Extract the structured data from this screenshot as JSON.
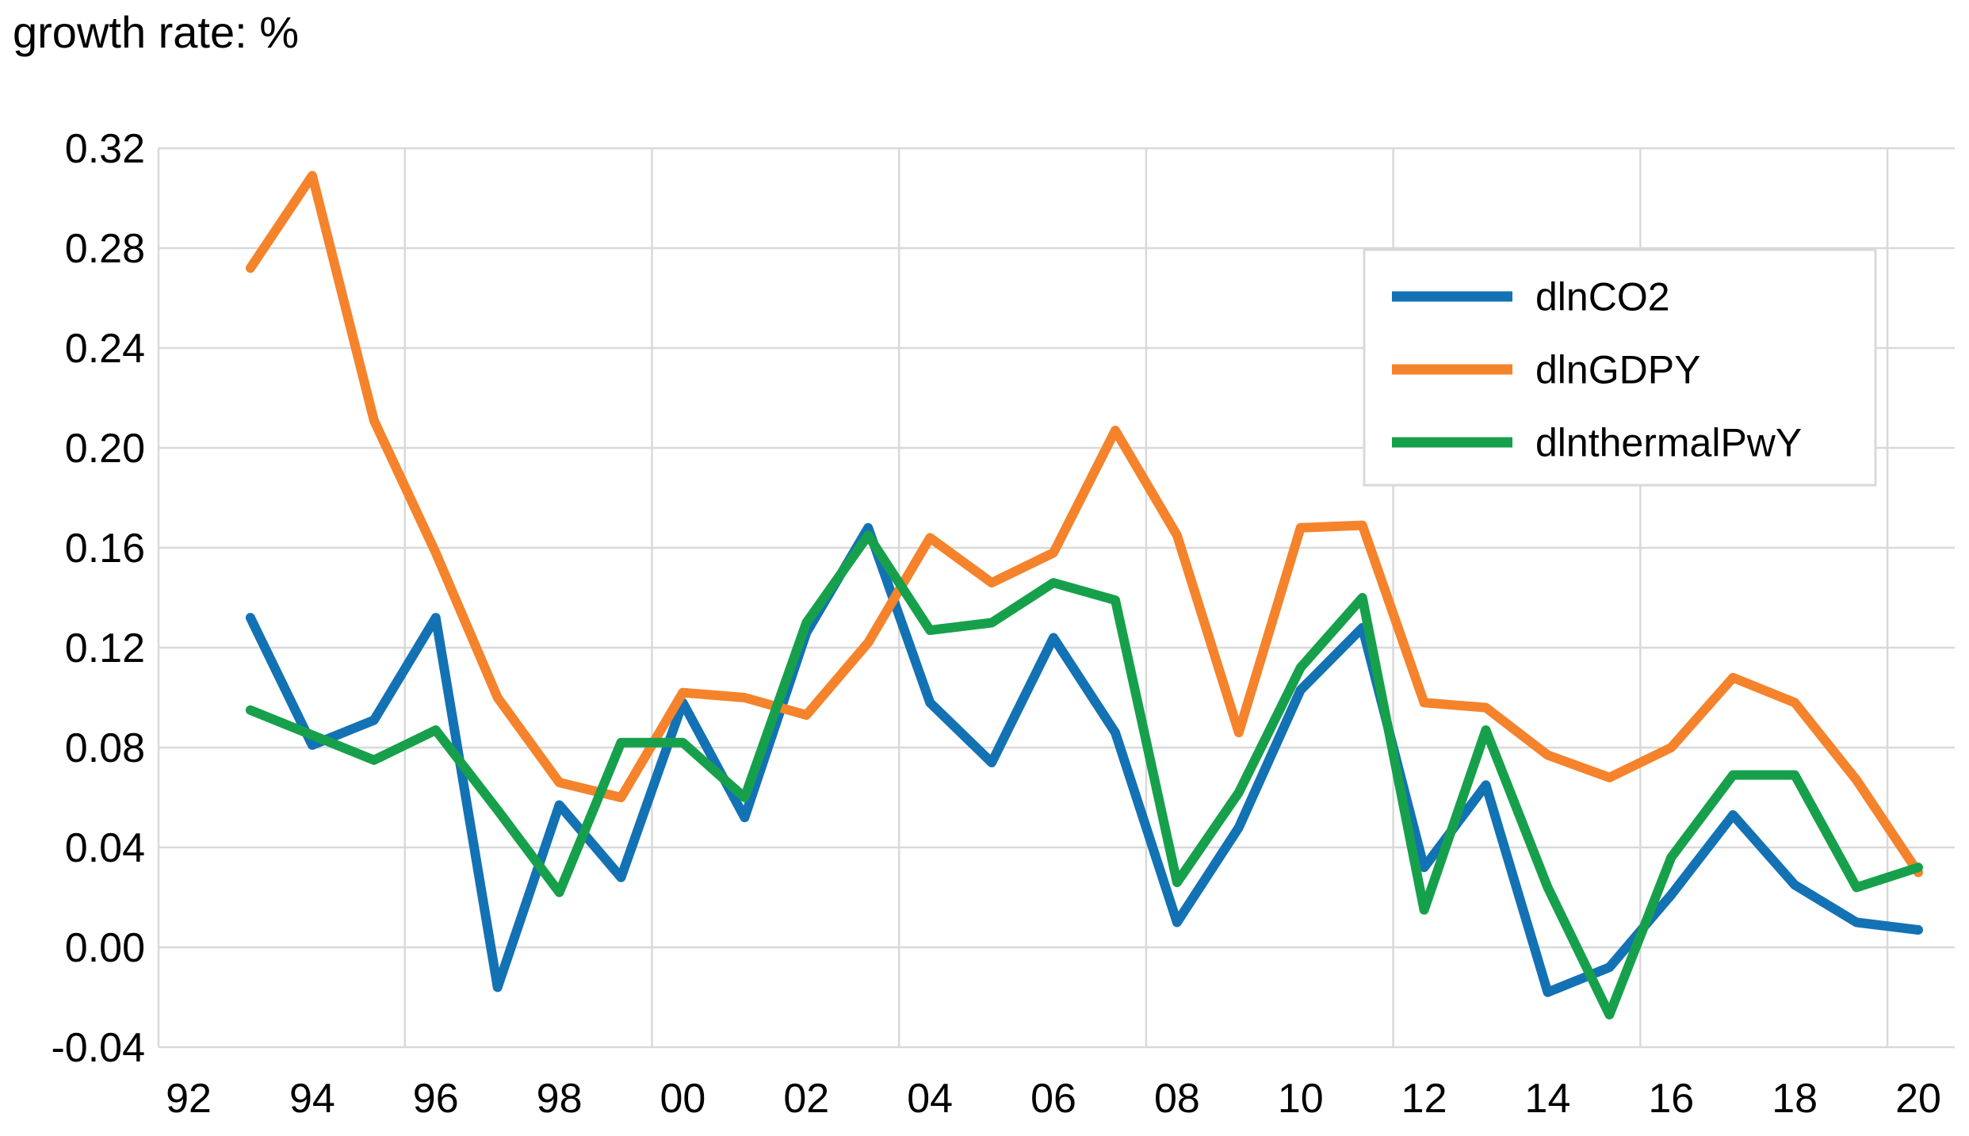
{
  "title": "growth rate: %",
  "chart_data": {
    "type": "line",
    "title": "growth rate: %",
    "xlabel": "",
    "ylabel": "growth rate: %",
    "x": [
      1993,
      1994,
      1995,
      1996,
      1997,
      1998,
      1999,
      2000,
      2001,
      2002,
      2003,
      2004,
      2005,
      2006,
      2007,
      2008,
      2009,
      2010,
      2011,
      2012,
      2013,
      2014,
      2015,
      2016,
      2017,
      2018,
      2019,
      2020
    ],
    "series": [
      {
        "name": "dlnCO2",
        "color": "#1372b4",
        "values": [
          0.132,
          0.081,
          0.091,
          0.132,
          -0.016,
          0.057,
          0.028,
          0.098,
          0.052,
          0.126,
          0.168,
          0.098,
          0.074,
          0.124,
          0.086,
          0.01,
          0.048,
          0.103,
          0.128,
          0.032,
          0.065,
          -0.018,
          -0.008,
          0.021,
          0.053,
          0.025,
          0.01,
          0.007
        ]
      },
      {
        "name": "dlnGDPY",
        "color": "#f5832c",
        "values": [
          0.272,
          0.309,
          0.211,
          0.158,
          0.1,
          0.066,
          0.06,
          0.102,
          0.1,
          0.093,
          0.122,
          0.164,
          0.146,
          0.158,
          0.207,
          0.165,
          0.086,
          0.168,
          0.169,
          0.098,
          0.096,
          0.077,
          0.068,
          0.08,
          0.108,
          0.098,
          0.067,
          0.03
        ]
      },
      {
        "name": "dlnthermalPwY",
        "color": "#17a04b",
        "values": [
          0.095,
          0.085,
          0.075,
          0.087,
          0.055,
          0.022,
          0.082,
          0.082,
          0.06,
          0.13,
          0.165,
          0.127,
          0.13,
          0.146,
          0.139,
          0.026,
          0.062,
          0.112,
          0.14,
          0.015,
          0.087,
          0.024,
          -0.027,
          0.036,
          0.069,
          0.069,
          0.024,
          0.032
        ]
      }
    ],
    "ylim": [
      -0.04,
      0.32
    ],
    "y_ticks": [
      "0.32",
      "0.28",
      "0.24",
      "0.20",
      "0.16",
      "0.12",
      "0.08",
      "0.04",
      "0.00",
      "-0.04"
    ],
    "y_tick_values": [
      0.32,
      0.28,
      0.24,
      0.2,
      0.16,
      0.12,
      0.08,
      0.04,
      0.0,
      -0.04
    ],
    "x_ticks": [
      "92",
      "94",
      "96",
      "98",
      "00",
      "02",
      "04",
      "06",
      "08",
      "10",
      "12",
      "14",
      "16",
      "18",
      "20"
    ],
    "x_tick_years": [
      1992,
      1994,
      1996,
      1998,
      2000,
      2002,
      2004,
      2006,
      2008,
      2010,
      2012,
      2014,
      2016,
      2018,
      2020
    ],
    "grid": "on",
    "v_gridline_years": [
      1995.5,
      1999.5,
      2003.5,
      2007.5,
      2011.5,
      2015.5,
      2019.5
    ],
    "gridline_color": "#d9d9d9",
    "legend_position": "upper right",
    "legend": [
      "dlnCO2",
      "dlnGDPY",
      "dlnthermalPwY"
    ]
  }
}
